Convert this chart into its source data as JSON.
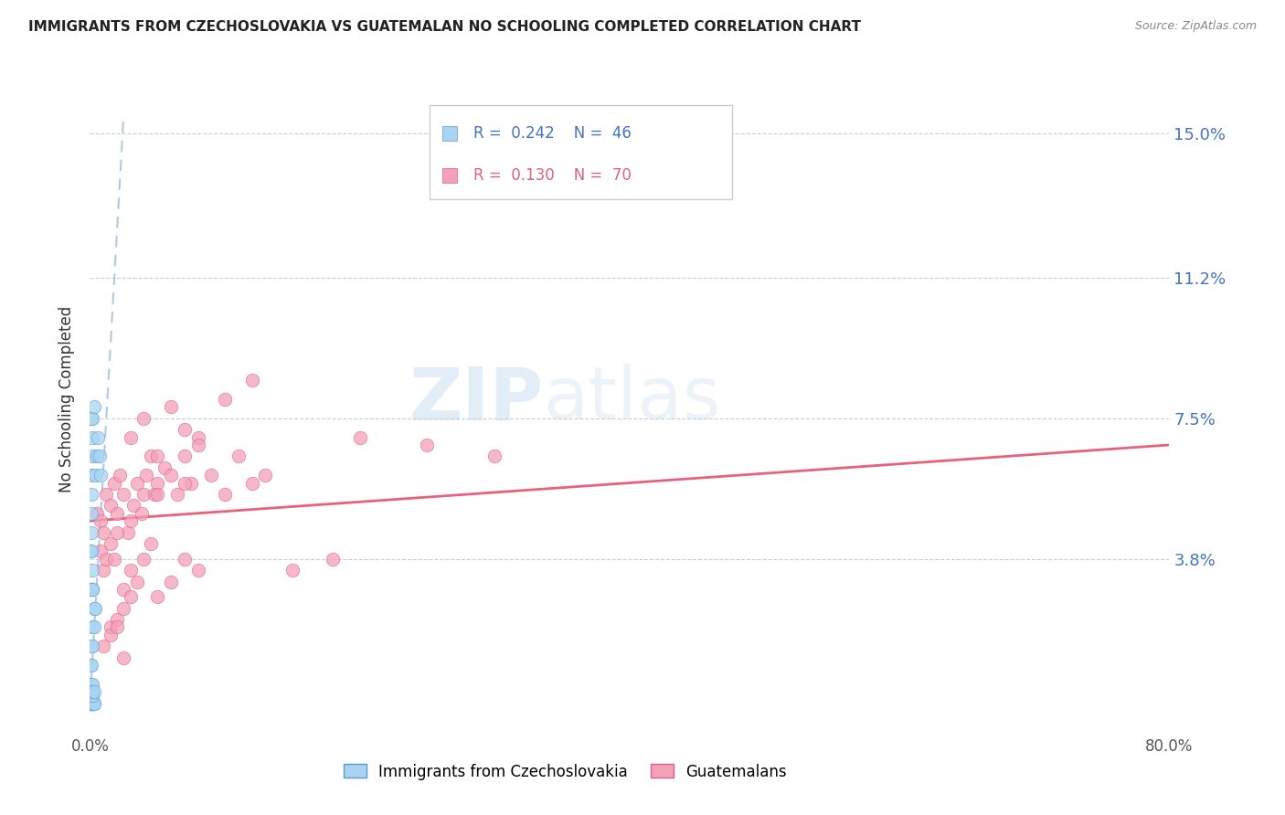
{
  "title": "IMMIGRANTS FROM CZECHOSLOVAKIA VS GUATEMALAN NO SCHOOLING COMPLETED CORRELATION CHART",
  "source": "Source: ZipAtlas.com",
  "ylabel": "No Schooling Completed",
  "ytick_labels": [
    "15.0%",
    "11.2%",
    "7.5%",
    "3.8%"
  ],
  "ytick_values": [
    0.15,
    0.112,
    0.075,
    0.038
  ],
  "xlim": [
    0.0,
    0.8
  ],
  "ylim": [
    -0.008,
    0.168
  ],
  "color_blue": "#A8D4F0",
  "color_pink": "#F4A0B8",
  "color_blue_dark": "#5B9BD5",
  "color_pink_dark": "#D96080",
  "color_blue_trend": "#8AB4D8",
  "color_pink_trend": "#E8607A",
  "legend_label1": "Immigrants from Czechoslovakia",
  "legend_label2": "Guatemalans",
  "watermark_color": "#D8ECF8",
  "czech_x": [
    0.0005,
    0.001,
    0.001,
    0.001,
    0.0015,
    0.002,
    0.002,
    0.002,
    0.003,
    0.003,
    0.0005,
    0.001,
    0.001,
    0.002,
    0.002,
    0.003,
    0.003,
    0.004,
    0.0005,
    0.001,
    0.0015,
    0.002,
    0.002,
    0.0005,
    0.001,
    0.001,
    0.001,
    0.001,
    0.001,
    0.002,
    0.002,
    0.001,
    0.001,
    0.002,
    0.001,
    0.002,
    0.002,
    0.003,
    0.001,
    0.002,
    0.003,
    0.004,
    0.005,
    0.006,
    0.007,
    0.008
  ],
  "czech_y": [
    0.0,
    0.0,
    0.0,
    0.0,
    0.0,
    0.0,
    0.0,
    0.0,
    0.0,
    0.0,
    0.01,
    0.01,
    0.015,
    0.015,
    0.02,
    0.02,
    0.025,
    0.025,
    0.03,
    0.03,
    0.03,
    0.03,
    0.035,
    0.04,
    0.04,
    0.045,
    0.05,
    0.055,
    0.06,
    0.065,
    0.07,
    0.003,
    0.005,
    0.005,
    0.002,
    0.002,
    0.003,
    0.003,
    0.075,
    0.075,
    0.078,
    0.06,
    0.065,
    0.07,
    0.065,
    0.06
  ],
  "guate_x": [
    0.005,
    0.008,
    0.01,
    0.012,
    0.015,
    0.018,
    0.02,
    0.022,
    0.025,
    0.028,
    0.03,
    0.032,
    0.035,
    0.038,
    0.04,
    0.042,
    0.045,
    0.048,
    0.05,
    0.055,
    0.06,
    0.065,
    0.07,
    0.075,
    0.08,
    0.09,
    0.1,
    0.11,
    0.12,
    0.13,
    0.008,
    0.01,
    0.012,
    0.015,
    0.018,
    0.02,
    0.025,
    0.03,
    0.035,
    0.04,
    0.045,
    0.05,
    0.06,
    0.07,
    0.08,
    0.015,
    0.02,
    0.025,
    0.03,
    0.01,
    0.015,
    0.02,
    0.025,
    0.2,
    0.25,
    0.3,
    0.15,
    0.18,
    0.1,
    0.12,
    0.05,
    0.07,
    0.03,
    0.04,
    0.05,
    0.06,
    0.07,
    0.08
  ],
  "guate_y": [
    0.05,
    0.048,
    0.045,
    0.055,
    0.052,
    0.058,
    0.05,
    0.06,
    0.055,
    0.045,
    0.048,
    0.052,
    0.058,
    0.05,
    0.055,
    0.06,
    0.065,
    0.055,
    0.058,
    0.062,
    0.06,
    0.055,
    0.065,
    0.058,
    0.07,
    0.06,
    0.055,
    0.065,
    0.058,
    0.06,
    0.04,
    0.035,
    0.038,
    0.042,
    0.038,
    0.045,
    0.03,
    0.035,
    0.032,
    0.038,
    0.042,
    0.028,
    0.032,
    0.038,
    0.035,
    0.02,
    0.022,
    0.025,
    0.028,
    0.015,
    0.018,
    0.02,
    0.012,
    0.07,
    0.068,
    0.065,
    0.035,
    0.038,
    0.08,
    0.085,
    0.055,
    0.058,
    0.07,
    0.075,
    0.065,
    0.078,
    0.072,
    0.068
  ],
  "pink_trend_x0": 0.0,
  "pink_trend_y0": 0.048,
  "pink_trend_x1": 0.8,
  "pink_trend_y1": 0.068,
  "blue_trend_x0": 0.0,
  "blue_trend_y0": 0.0,
  "blue_trend_x1": 0.025,
  "blue_trend_y1": 0.155
}
